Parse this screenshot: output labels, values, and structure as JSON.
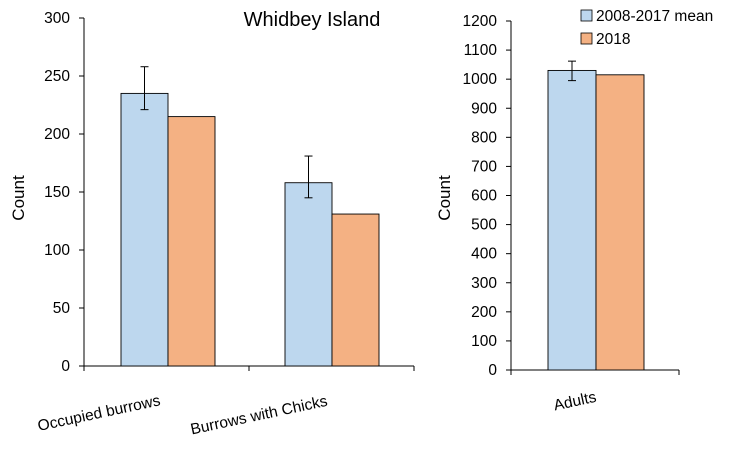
{
  "colors": {
    "mean": "#bdd7ee",
    "y2018": "#f4b183",
    "stroke": "#000000"
  },
  "legend": [
    {
      "label": "2008-2017 mean",
      "color": "#bdd7ee"
    },
    {
      "label": "2018",
      "color": "#f4b183"
    }
  ],
  "chart_data": [
    {
      "type": "bar",
      "title": "Whidbey Island",
      "ylabel": "Count",
      "xlabel": "",
      "ylim": [
        0,
        300
      ],
      "yticks": [
        0,
        50,
        100,
        150,
        200,
        250,
        300
      ],
      "categories": [
        "Occupied burrows",
        "Burrows with Chicks"
      ],
      "series": [
        {
          "name": "2008-2017 mean",
          "values": [
            235,
            158
          ],
          "error_low": [
            221,
            145
          ],
          "error_high": [
            258,
            181
          ]
        },
        {
          "name": "2018",
          "values": [
            215,
            131
          ]
        }
      ]
    },
    {
      "type": "bar",
      "title": "",
      "ylabel": "Count",
      "xlabel": "",
      "ylim": [
        0,
        1200
      ],
      "yticks": [
        0,
        100,
        200,
        300,
        400,
        500,
        600,
        700,
        800,
        900,
        1000,
        1100,
        1200
      ],
      "categories": [
        "Adults"
      ],
      "series": [
        {
          "name": "2008-2017 mean",
          "values": [
            1030
          ],
          "error_low": [
            995
          ],
          "error_high": [
            1062
          ]
        },
        {
          "name": "2018",
          "values": [
            1015
          ]
        }
      ],
      "legend_position": "top-right"
    }
  ]
}
